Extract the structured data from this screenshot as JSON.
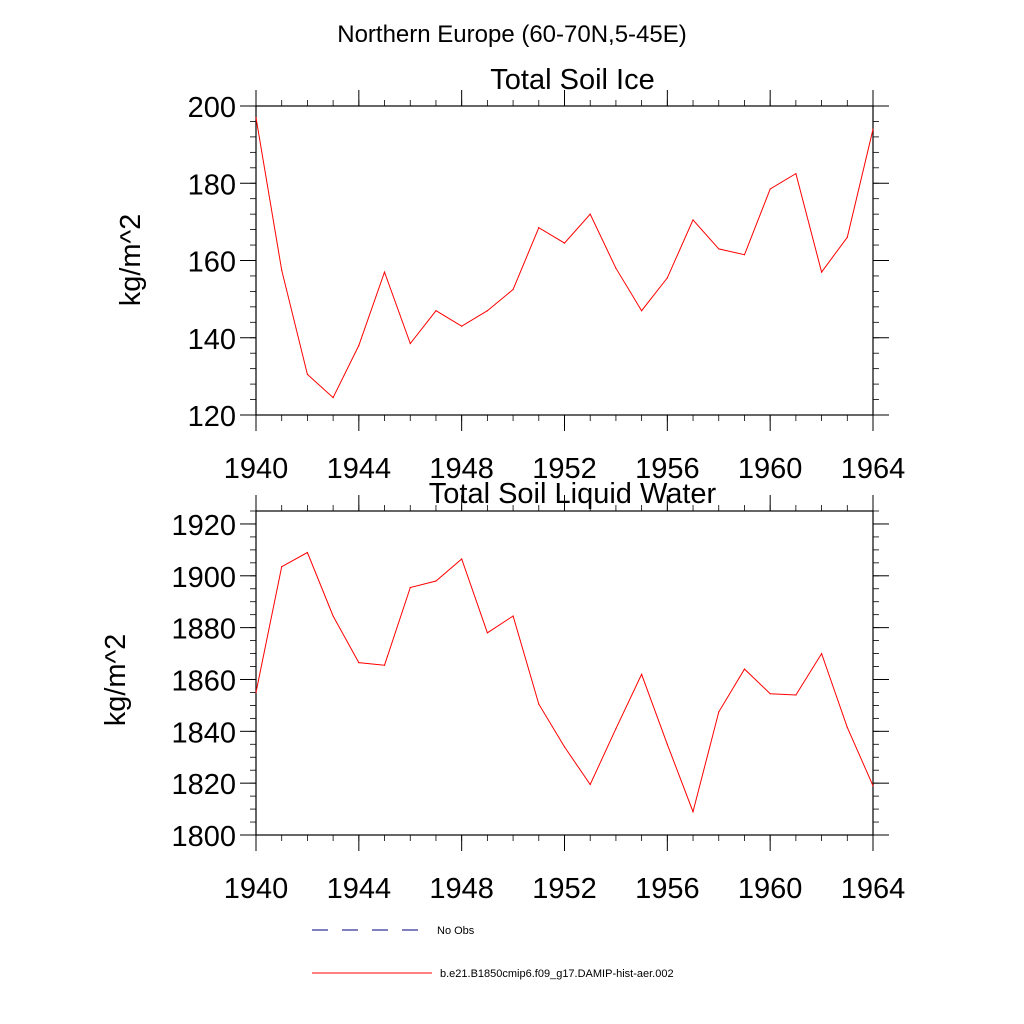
{
  "suptitle": "Northern Europe (60-70N,5-45E)",
  "colors": {
    "series": "#ff0000",
    "obs": "#000080",
    "axis": "#000000"
  },
  "chart_data": [
    {
      "type": "line",
      "title": "Total Soil Ice",
      "ylabel": "kg/m^2",
      "xlabel": "",
      "xlim": [
        1940,
        1964
      ],
      "ylim": [
        120,
        200
      ],
      "xticks": [
        "1940",
        "1944",
        "1948",
        "1952",
        "1956",
        "1960",
        "1964"
      ],
      "yticks": [
        "120",
        "140",
        "160",
        "180",
        "200"
      ],
      "grid": false,
      "series": [
        {
          "name": "b.e21.B1850cmip6.f09_g17.DAMIP-hist-aer.002",
          "x": [
            1940,
            1941,
            1942,
            1943,
            1944,
            1945,
            1946,
            1947,
            1948,
            1949,
            1950,
            1951,
            1952,
            1953,
            1954,
            1955,
            1956,
            1957,
            1958,
            1959,
            1960,
            1961,
            1962,
            1963,
            1964
          ],
          "values": [
            197,
            157.5,
            130.5,
            124.5,
            138,
            157,
            138.5,
            147,
            143,
            147,
            152.5,
            168.5,
            164.5,
            172,
            158,
            147,
            155.5,
            170.5,
            163,
            161.5,
            178.5,
            182.5,
            157,
            166,
            194
          ]
        }
      ]
    },
    {
      "type": "line",
      "title": "Total Soil Liquid Water",
      "ylabel": "kg/m^2",
      "xlabel": "",
      "xlim": [
        1940,
        1964
      ],
      "ylim": [
        1800,
        1925
      ],
      "xticks": [
        "1940",
        "1944",
        "1948",
        "1952",
        "1956",
        "1960",
        "1964"
      ],
      "yticks": [
        "1800",
        "1820",
        "1840",
        "1860",
        "1880",
        "1900",
        "1920"
      ],
      "grid": false,
      "series": [
        {
          "name": "b.e21.B1850cmip6.f09_g17.DAMIP-hist-aer.002",
          "x": [
            1940,
            1941,
            1942,
            1943,
            1944,
            1945,
            1946,
            1947,
            1948,
            1949,
            1950,
            1951,
            1952,
            1953,
            1954,
            1955,
            1956,
            1957,
            1958,
            1959,
            1960,
            1961,
            1962,
            1963,
            1964
          ],
          "values": [
            1855,
            1903.5,
            1909,
            1884.5,
            1866.5,
            1865.5,
            1895.5,
            1898,
            1906.5,
            1878,
            1884.5,
            1850.5,
            1834,
            1819.5,
            1841,
            1862,
            1835,
            1809,
            1847.5,
            1864,
            1854.5,
            1854,
            1870,
            1841.5,
            1819
          ]
        }
      ]
    }
  ],
  "legend": [
    {
      "label": "No Obs",
      "style": "dashed",
      "color": "#000080"
    },
    {
      "label": "b.e21.B1850cmip6.f09_g17.DAMIP-hist-aer.002",
      "style": "solid",
      "color": "#ff0000"
    }
  ]
}
